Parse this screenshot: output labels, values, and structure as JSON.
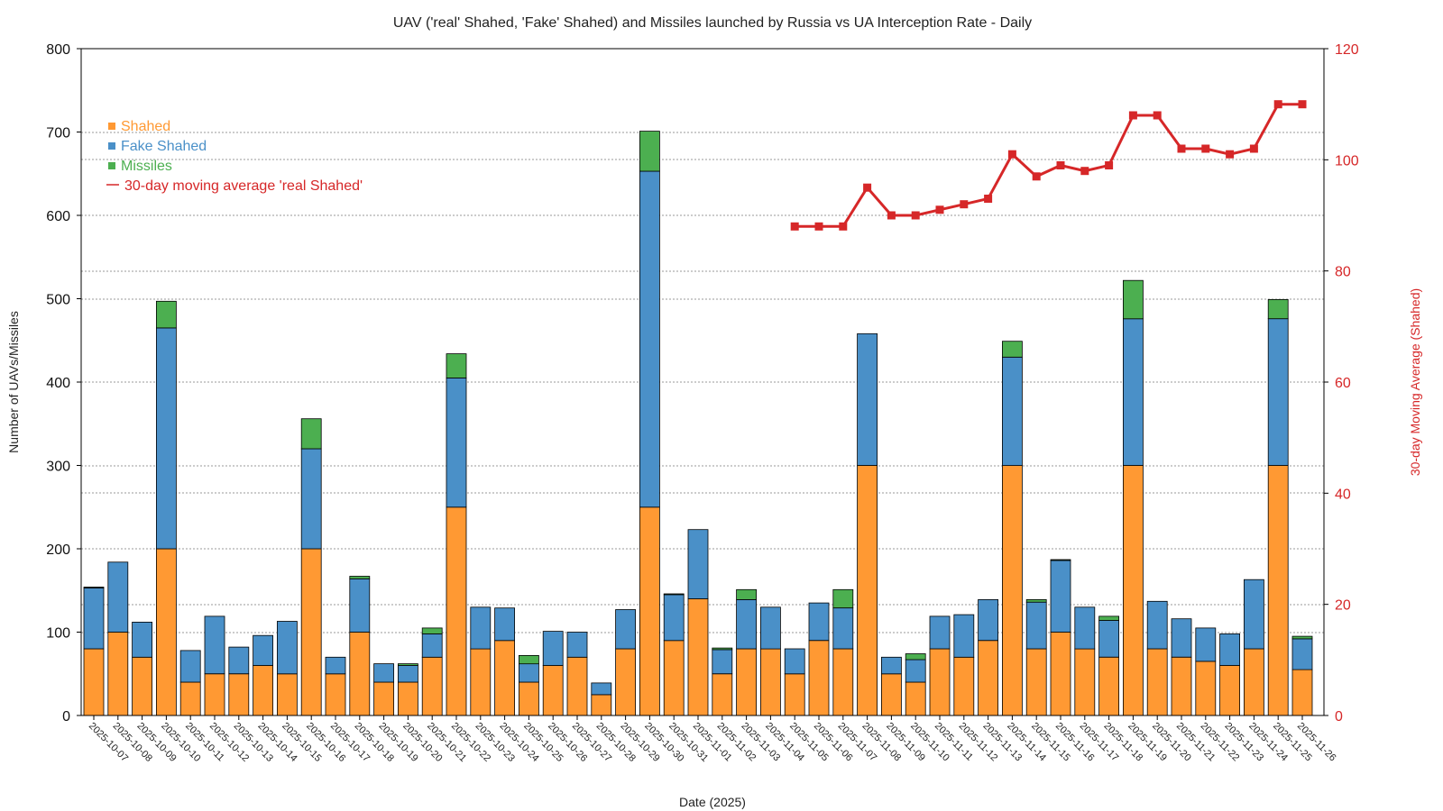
{
  "chart_data": {
    "type": "bar",
    "stacked": true,
    "title": "UAV ('real' Shahed, 'Fake' Shahed) and Missiles launched by Russia vs UA Interception Rate - Daily",
    "xlabel": "Date (2025)",
    "ylabel": "Number of UAVs/Missiles",
    "y2label": "30-day Moving Average (Shahed)",
    "ylim": [
      0,
      800
    ],
    "y2lim": [
      0,
      120
    ],
    "yticks": [
      "0",
      "100",
      "200",
      "300",
      "400",
      "500",
      "600",
      "700",
      "800"
    ],
    "y2ticks": [
      "0",
      "20",
      "40",
      "60",
      "80",
      "100",
      "120"
    ],
    "grid": true,
    "legend_position": "top-left",
    "legend": [
      "Shahed",
      "Fake Shahed",
      "Missiles",
      "30-day moving average 'real Shahed'"
    ],
    "colors": {
      "shahed": "#ff9933",
      "fake": "#4a90c8",
      "missiles": "#4caf50",
      "avg": "#d62728"
    },
    "categories": [
      "2025-10-07",
      "2025-10-08",
      "2025-10-09",
      "2025-10-10",
      "2025-10-11",
      "2025-10-12",
      "2025-10-13",
      "2025-10-14",
      "2025-10-15",
      "2025-10-16",
      "2025-10-17",
      "2025-10-18",
      "2025-10-19",
      "2025-10-20",
      "2025-10-21",
      "2025-10-22",
      "2025-10-23",
      "2025-10-24",
      "2025-10-25",
      "2025-10-26",
      "2025-10-27",
      "2025-10-28",
      "2025-10-29",
      "2025-10-30",
      "2025-10-31",
      "2025-11-01",
      "2025-11-02",
      "2025-11-03",
      "2025-11-04",
      "2025-11-05",
      "2025-11-06",
      "2025-11-07",
      "2025-11-08",
      "2025-11-09",
      "2025-11-10",
      "2025-11-11",
      "2025-11-12",
      "2025-11-13",
      "2025-11-14",
      "2025-11-15",
      "2025-11-16",
      "2025-11-17",
      "2025-11-18",
      "2025-11-19",
      "2025-11-20",
      "2025-11-21",
      "2025-11-22",
      "2025-11-23",
      "2025-11-24",
      "2025-11-25",
      "2025-11-26"
    ],
    "series": [
      {
        "name": "Shahed",
        "values": [
          80,
          100,
          70,
          200,
          40,
          50,
          50,
          60,
          50,
          200,
          50,
          100,
          40,
          40,
          70,
          250,
          80,
          90,
          40,
          60,
          70,
          25,
          80,
          250,
          90,
          140,
          50,
          80,
          80,
          50,
          90,
          80,
          300,
          50,
          40,
          80,
          70,
          90,
          300,
          80,
          100,
          80,
          70,
          300,
          80,
          70,
          65,
          60,
          80,
          300,
          55
        ]
      },
      {
        "name": "Fake Shahed",
        "values": [
          73,
          84,
          42,
          265,
          38,
          69,
          32,
          36,
          63,
          120,
          20,
          64,
          22,
          20,
          28,
          155,
          50,
          39,
          22,
          41,
          30,
          14,
          47,
          403,
          55,
          83,
          29,
          59,
          50,
          30,
          45,
          49,
          158,
          20,
          27,
          39,
          51,
          49,
          130,
          56,
          86,
          50,
          44,
          176,
          57,
          46,
          40,
          38,
          83,
          176,
          37
        ]
      },
      {
        "name": "Missiles",
        "values": [
          1,
          0,
          0,
          32,
          0,
          0,
          0,
          0,
          0,
          36,
          0,
          3,
          0,
          2,
          7,
          29,
          0,
          0,
          10,
          0,
          0,
          0,
          0,
          48,
          1,
          0,
          2,
          12,
          0,
          0,
          0,
          22,
          0,
          0,
          7,
          0,
          0,
          0,
          19,
          3,
          1,
          0,
          5,
          46,
          0,
          0,
          0,
          0,
          0,
          23,
          3
        ]
      },
      {
        "name": "30-day moving average 'real Shahed'",
        "axis": "right",
        "values": [
          null,
          null,
          null,
          null,
          null,
          null,
          null,
          null,
          null,
          null,
          null,
          null,
          null,
          null,
          null,
          null,
          null,
          null,
          null,
          null,
          null,
          null,
          null,
          null,
          null,
          null,
          null,
          null,
          null,
          88,
          88,
          88,
          95,
          90,
          90,
          91,
          92,
          93,
          101,
          97,
          99,
          98,
          99,
          108,
          108,
          102,
          102,
          101,
          102,
          110,
          110
        ]
      }
    ]
  }
}
